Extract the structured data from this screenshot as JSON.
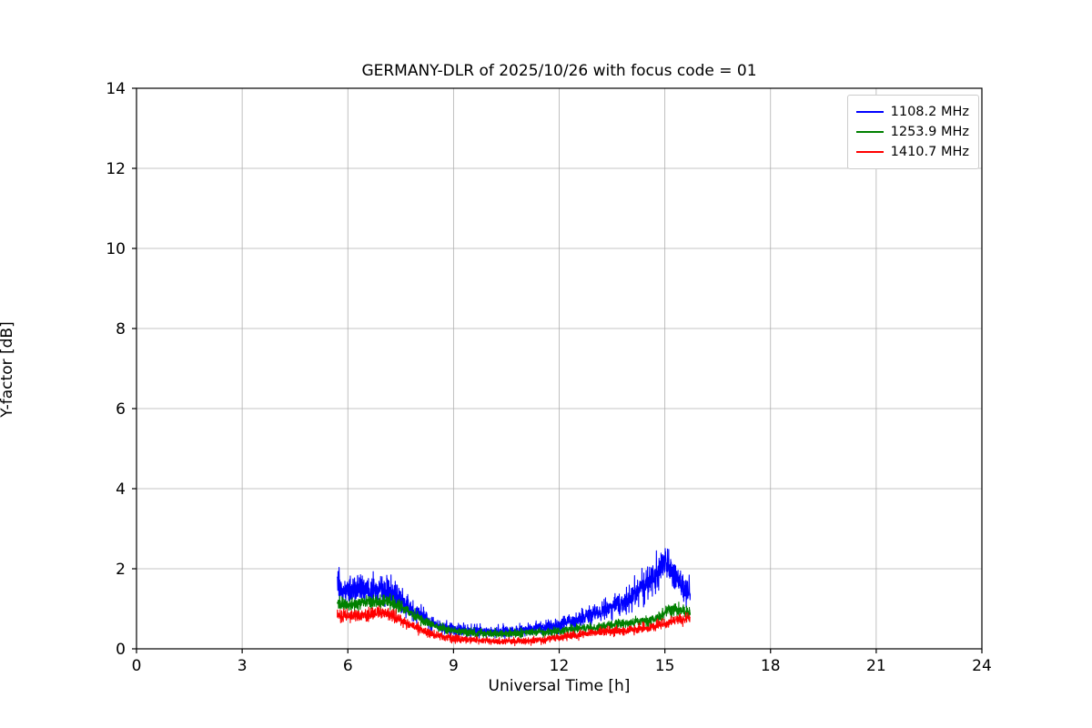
{
  "figure": {
    "background": "#ffffff",
    "grid_color": "#b0b0b0",
    "axis_color": "#000000"
  },
  "chart_data": {
    "type": "line",
    "title": "GERMANY-DLR of 2025/10/26 with focus code = 01",
    "xlabel": "Universal Time [h]",
    "ylabel": "Y-factor [dB]",
    "xlim": [
      0,
      24
    ],
    "ylim": [
      0,
      14
    ],
    "xticks": [
      0,
      3,
      6,
      9,
      12,
      15,
      18,
      21,
      24
    ],
    "yticks": [
      0,
      2,
      4,
      6,
      8,
      10,
      12,
      14
    ],
    "grid": true,
    "legend_position": "upper right",
    "series": [
      {
        "name": "1108.2 MHz",
        "color": "#0000ff",
        "x_start": 5.7,
        "x_end": 15.72,
        "noise_sigma_base": 0.025,
        "noise_sigma_scale": 0.1,
        "seed": 11082,
        "trend": [
          [
            5.7,
            1.7
          ],
          [
            5.8,
            1.45
          ],
          [
            6.0,
            1.45
          ],
          [
            6.3,
            1.5
          ],
          [
            6.6,
            1.42
          ],
          [
            6.9,
            1.5
          ],
          [
            7.1,
            1.45
          ],
          [
            7.3,
            1.35
          ],
          [
            7.6,
            1.1
          ],
          [
            8.0,
            0.85
          ],
          [
            8.5,
            0.6
          ],
          [
            9.0,
            0.5
          ],
          [
            9.5,
            0.45
          ],
          [
            10.0,
            0.42
          ],
          [
            10.5,
            0.44
          ],
          [
            11.0,
            0.48
          ],
          [
            11.5,
            0.52
          ],
          [
            12.0,
            0.58
          ],
          [
            12.5,
            0.72
          ],
          [
            13.0,
            0.88
          ],
          [
            13.5,
            1.05
          ],
          [
            14.0,
            1.28
          ],
          [
            14.3,
            1.48
          ],
          [
            14.6,
            1.7
          ],
          [
            14.85,
            1.95
          ],
          [
            15.0,
            2.2
          ],
          [
            15.1,
            2.15
          ],
          [
            15.3,
            1.8
          ],
          [
            15.5,
            1.62
          ],
          [
            15.72,
            1.45
          ]
        ]
      },
      {
        "name": "1253.9 MHz",
        "color": "#008000",
        "x_start": 5.7,
        "x_end": 15.72,
        "noise_sigma_base": 0.03,
        "noise_sigma_scale": 0.045,
        "seed": 12539,
        "trend": [
          [
            5.7,
            1.15
          ],
          [
            6.0,
            1.1
          ],
          [
            6.5,
            1.15
          ],
          [
            7.0,
            1.2
          ],
          [
            7.4,
            1.1
          ],
          [
            7.8,
            0.9
          ],
          [
            8.2,
            0.68
          ],
          [
            8.6,
            0.52
          ],
          [
            9.0,
            0.45
          ],
          [
            9.5,
            0.4
          ],
          [
            10.0,
            0.38
          ],
          [
            10.5,
            0.38
          ],
          [
            11.0,
            0.4
          ],
          [
            11.5,
            0.42
          ],
          [
            12.0,
            0.45
          ],
          [
            12.5,
            0.5
          ],
          [
            13.0,
            0.55
          ],
          [
            13.5,
            0.6
          ],
          [
            14.0,
            0.65
          ],
          [
            14.5,
            0.7
          ],
          [
            14.9,
            0.8
          ],
          [
            15.1,
            0.95
          ],
          [
            15.25,
            1.02
          ],
          [
            15.5,
            0.92
          ],
          [
            15.72,
            0.9
          ]
        ]
      },
      {
        "name": "1410.7 MHz",
        "color": "#ff0000",
        "x_start": 5.7,
        "x_end": 15.72,
        "noise_sigma_base": 0.03,
        "noise_sigma_scale": 0.055,
        "seed": 14107,
        "trend": [
          [
            5.7,
            0.85
          ],
          [
            6.0,
            0.82
          ],
          [
            6.5,
            0.85
          ],
          [
            7.0,
            0.92
          ],
          [
            7.4,
            0.78
          ],
          [
            7.8,
            0.58
          ],
          [
            8.2,
            0.42
          ],
          [
            8.6,
            0.32
          ],
          [
            9.0,
            0.25
          ],
          [
            9.5,
            0.22
          ],
          [
            10.0,
            0.2
          ],
          [
            10.5,
            0.19
          ],
          [
            11.0,
            0.19
          ],
          [
            11.5,
            0.22
          ],
          [
            12.0,
            0.28
          ],
          [
            12.5,
            0.34
          ],
          [
            13.0,
            0.4
          ],
          [
            13.5,
            0.43
          ],
          [
            14.0,
            0.46
          ],
          [
            14.5,
            0.52
          ],
          [
            15.0,
            0.62
          ],
          [
            15.3,
            0.72
          ],
          [
            15.5,
            0.76
          ],
          [
            15.72,
            0.74
          ]
        ]
      }
    ]
  }
}
